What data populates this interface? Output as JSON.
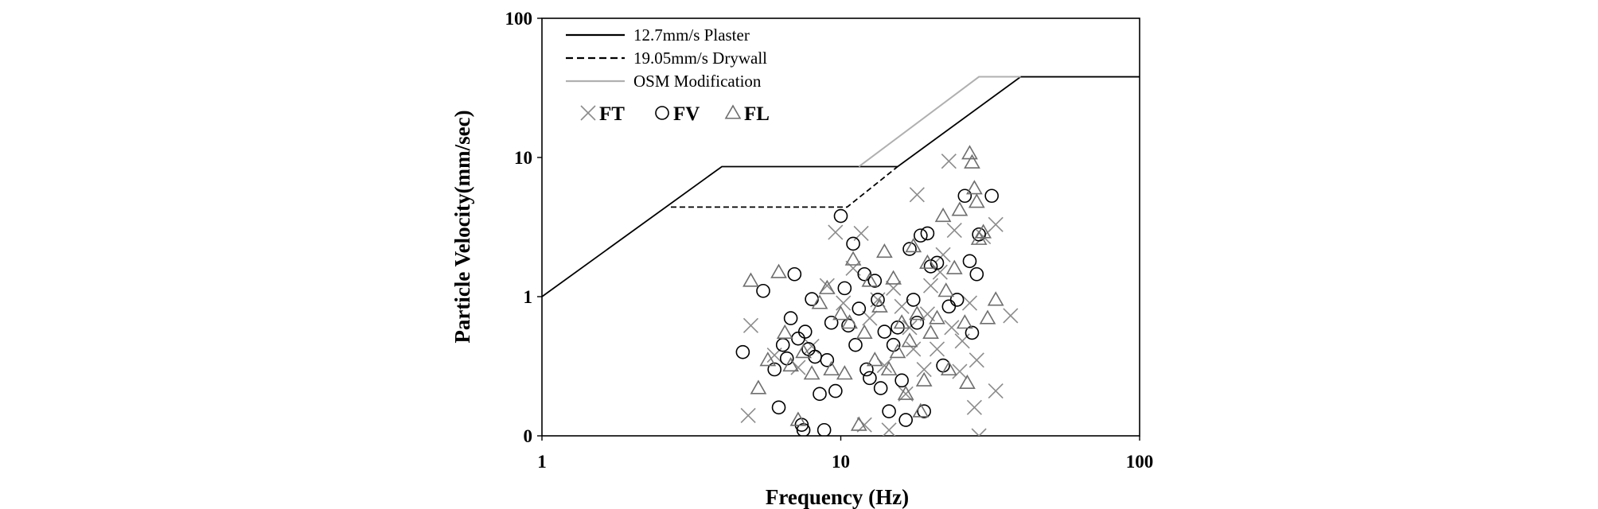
{
  "chart_data": {
    "type": "scatter",
    "title": "",
    "xlabel": "Frequency (Hz)",
    "ylabel": "Particle Velocity(mm/sec)",
    "x_scale": "log",
    "y_scale": "log",
    "xlim": [
      1,
      100
    ],
    "ylim": [
      0.1,
      100
    ],
    "x_ticks": [
      {
        "value": 1,
        "label": "1"
      },
      {
        "value": 10,
        "label": "10"
      },
      {
        "value": 100,
        "label": "100"
      }
    ],
    "y_ticks": [
      {
        "value": 0.1,
        "label": "0"
      },
      {
        "value": 1,
        "label": "1"
      },
      {
        "value": 10,
        "label": "10"
      },
      {
        "value": 100,
        "label": "100"
      }
    ],
    "grid": false,
    "legend_position": "top-left",
    "lines": [
      {
        "name": "12.7mm/s Plaster",
        "style": "solid",
        "color": "#000000",
        "points": [
          [
            1,
            1.0
          ],
          [
            4,
            8.6
          ],
          [
            15.5,
            8.6
          ],
          [
            40,
            38
          ],
          [
            100,
            38
          ]
        ]
      },
      {
        "name": "19.05mm/s Drywall",
        "style": "dashed",
        "color": "#000000",
        "points": [
          [
            2.7,
            4.4
          ],
          [
            10.5,
            4.4
          ],
          [
            15.5,
            8.6
          ]
        ]
      },
      {
        "name": "OSM Modification",
        "style": "solid",
        "color": "#b0b0b0",
        "points": [
          [
            11.5,
            8.6
          ],
          [
            29,
            38
          ],
          [
            40,
            38
          ]
        ]
      }
    ],
    "series": [
      {
        "name": "FT",
        "marker": "x",
        "color": "#8c8c8c",
        "points": [
          [
            5,
            0.62
          ],
          [
            4.9,
            0.14
          ],
          [
            6,
            0.38
          ],
          [
            7.2,
            0.31
          ],
          [
            8,
            0.44
          ],
          [
            9,
            1.2
          ],
          [
            9.6,
            2.9
          ],
          [
            10.2,
            0.9
          ],
          [
            11,
            1.6
          ],
          [
            11.7,
            2.85
          ],
          [
            12.5,
            0.7
          ],
          [
            13.3,
            0.95
          ],
          [
            14,
            0.32
          ],
          [
            15,
            1.15
          ],
          [
            16,
            0.85
          ],
          [
            17,
            0.6
          ],
          [
            18,
            5.4
          ],
          [
            19,
            0.3
          ],
          [
            20,
            1.2
          ],
          [
            21,
            0.42
          ],
          [
            22,
            2.0
          ],
          [
            23,
            9.4
          ],
          [
            24,
            3.0
          ],
          [
            25,
            0.29
          ],
          [
            27,
            0.9
          ],
          [
            28,
            0.16
          ],
          [
            28.5,
            0.35
          ],
          [
            29,
            0.1
          ],
          [
            30,
            2.7
          ],
          [
            33,
            3.3
          ],
          [
            33,
            0.21
          ],
          [
            37,
            0.73
          ],
          [
            12,
            0.12
          ],
          [
            14.5,
            0.11
          ],
          [
            16.5,
            0.2
          ],
          [
            17.5,
            0.42
          ],
          [
            19.5,
            0.75
          ],
          [
            21.5,
            1.5
          ],
          [
            23.5,
            0.6
          ],
          [
            25.5,
            0.48
          ]
        ]
      },
      {
        "name": "FV",
        "marker": "o",
        "color": "#000000",
        "points": [
          [
            4.7,
            0.4
          ],
          [
            5.5,
            1.1
          ],
          [
            6,
            0.3
          ],
          [
            6.2,
            0.16
          ],
          [
            6.4,
            0.45
          ],
          [
            6.6,
            0.36
          ],
          [
            6.8,
            0.7
          ],
          [
            7,
            1.45
          ],
          [
            7.2,
            0.5
          ],
          [
            7.4,
            0.12
          ],
          [
            7.6,
            0.56
          ],
          [
            7.8,
            0.42
          ],
          [
            8,
            0.96
          ],
          [
            8.2,
            0.37
          ],
          [
            8.5,
            0.2
          ],
          [
            9,
            0.35
          ],
          [
            9.3,
            0.65
          ],
          [
            9.6,
            0.21
          ],
          [
            10,
            3.8
          ],
          [
            10.3,
            1.15
          ],
          [
            10.6,
            0.62
          ],
          [
            11,
            2.4
          ],
          [
            11.2,
            0.45
          ],
          [
            11.5,
            0.82
          ],
          [
            12,
            1.45
          ],
          [
            12.2,
            0.3
          ],
          [
            12.5,
            0.26
          ],
          [
            13,
            1.3
          ],
          [
            13.3,
            0.95
          ],
          [
            13.6,
            0.22
          ],
          [
            14,
            0.56
          ],
          [
            14.5,
            0.15
          ],
          [
            15,
            0.45
          ],
          [
            15.5,
            0.6
          ],
          [
            16,
            0.25
          ],
          [
            16.5,
            0.13
          ],
          [
            17,
            2.2
          ],
          [
            17.5,
            0.95
          ],
          [
            18,
            0.65
          ],
          [
            18.5,
            2.75
          ],
          [
            19,
            0.15
          ],
          [
            19.5,
            2.85
          ],
          [
            20,
            1.65
          ],
          [
            21,
            1.75
          ],
          [
            22,
            0.32
          ],
          [
            23,
            0.85
          ],
          [
            24.5,
            0.95
          ],
          [
            26,
            5.3
          ],
          [
            27,
            1.8
          ],
          [
            27.5,
            0.55
          ],
          [
            28.5,
            1.45
          ],
          [
            29,
            2.8
          ],
          [
            32,
            5.3
          ],
          [
            7.5,
            0.11
          ],
          [
            8.8,
            0.11
          ]
        ]
      },
      {
        "name": "FL",
        "marker": "triangle",
        "color": "#6e6e6e",
        "points": [
          [
            5,
            1.3
          ],
          [
            5.3,
            0.22
          ],
          [
            5.7,
            0.35
          ],
          [
            6.2,
            1.5
          ],
          [
            6.5,
            0.55
          ],
          [
            6.8,
            0.32
          ],
          [
            7.2,
            0.13
          ],
          [
            7.5,
            0.4
          ],
          [
            8,
            0.28
          ],
          [
            8.5,
            0.9
          ],
          [
            9,
            1.15
          ],
          [
            9.3,
            0.3
          ],
          [
            10,
            0.75
          ],
          [
            10.3,
            0.28
          ],
          [
            10.7,
            0.65
          ],
          [
            11,
            1.85
          ],
          [
            11.5,
            0.12
          ],
          [
            12,
            0.55
          ],
          [
            12.5,
            1.3
          ],
          [
            13,
            0.35
          ],
          [
            13.5,
            0.85
          ],
          [
            14,
            2.1
          ],
          [
            14.5,
            0.3
          ],
          [
            15,
            1.35
          ],
          [
            15.5,
            0.4
          ],
          [
            16,
            0.65
          ],
          [
            16.5,
            0.2
          ],
          [
            17,
            0.48
          ],
          [
            17.5,
            2.3
          ],
          [
            18,
            0.75
          ],
          [
            19,
            0.25
          ],
          [
            19.5,
            1.75
          ],
          [
            20,
            0.55
          ],
          [
            21,
            0.7
          ],
          [
            22,
            3.8
          ],
          [
            23,
            0.3
          ],
          [
            24,
            1.6
          ],
          [
            25,
            4.2
          ],
          [
            26,
            0.65
          ],
          [
            27,
            10.7
          ],
          [
            27.5,
            9.2
          ],
          [
            28,
            6.0
          ],
          [
            28.5,
            4.8
          ],
          [
            29,
            2.6
          ],
          [
            30,
            2.9
          ],
          [
            31,
            0.7
          ],
          [
            33,
            0.95
          ],
          [
            26.5,
            0.24
          ],
          [
            22.5,
            1.1
          ],
          [
            18.5,
            0.15
          ]
        ]
      }
    ]
  }
}
